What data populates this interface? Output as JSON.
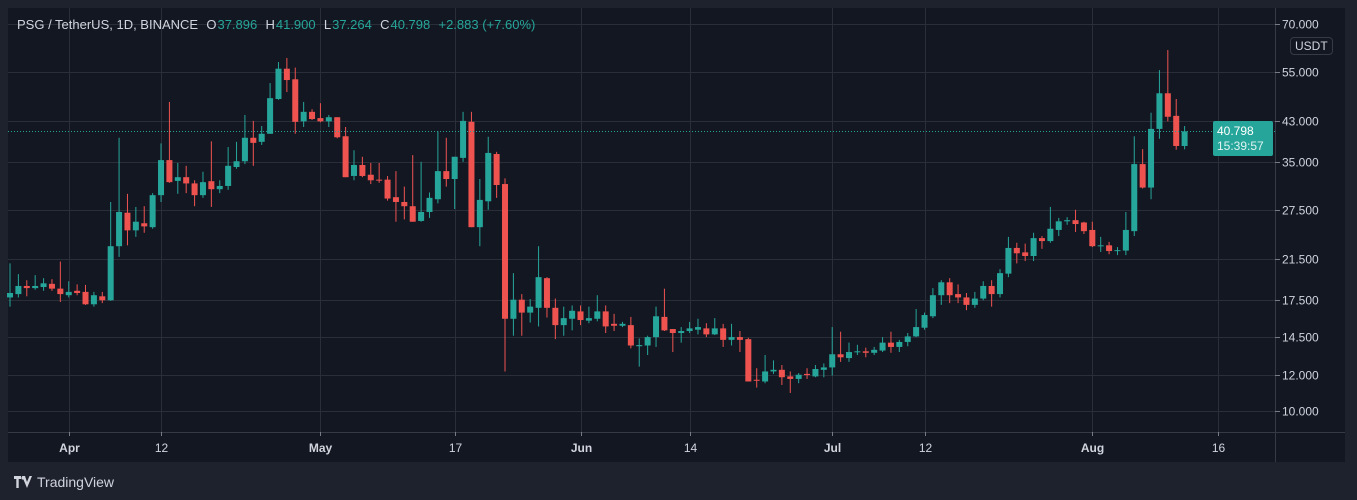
{
  "header": {
    "symbol": "PSG / TetherUS, 1D, BINANCE",
    "open_label": "O",
    "open": "37.896",
    "high_label": "H",
    "high": "41.900",
    "low_label": "L",
    "low": "37.264",
    "close_label": "C",
    "close": "40.798",
    "change": "+2.883 (+7.60%)"
  },
  "price_axis": {
    "unit": "USDT",
    "last_price": "40.798",
    "countdown": "15:39:57"
  },
  "footer": {
    "brand": "TradingView"
  },
  "colors": {
    "up": "#26a69a",
    "down": "#ef5350",
    "grid": "#2a2e39",
    "background": "#131722",
    "text": "#d1d4dc"
  },
  "chart_data": {
    "type": "candlestick",
    "interval": "1D",
    "y_scale": "log",
    "ylim": [
      9.3,
      72
    ],
    "grid": true,
    "y_ticks": [
      70,
      55,
      43,
      35,
      27.5,
      21.5,
      17.5,
      14.5,
      12,
      10
    ],
    "y_tick_labels": [
      "70.000",
      "55.000",
      "43.000",
      "35.000",
      "27.500",
      "21.500",
      "17.500",
      "14.500",
      "12.000",
      "10.000"
    ],
    "x_ticks": [
      {
        "date": "04-01",
        "label": "Apr"
      },
      {
        "date": "04-12",
        "label": "12"
      },
      {
        "date": "05-01",
        "label": "May"
      },
      {
        "date": "05-17",
        "label": "17"
      },
      {
        "date": "06-01",
        "label": "Jun"
      },
      {
        "date": "06-14",
        "label": "14"
      },
      {
        "date": "07-01",
        "label": "Jul"
      },
      {
        "date": "07-12",
        "label": "12"
      },
      {
        "date": "08-01",
        "label": "Aug"
      },
      {
        "date": "08-16",
        "label": "16"
      }
    ],
    "last_price": 40.798,
    "columns": [
      "date",
      "open",
      "high",
      "low",
      "close"
    ],
    "candles": [
      [
        "03-25",
        17.7,
        21.0,
        16.9,
        18.1
      ],
      [
        "03-26",
        18.0,
        19.9,
        17.7,
        18.75
      ],
      [
        "03-27",
        18.75,
        19.3,
        17.8,
        18.55
      ],
      [
        "03-28",
        18.55,
        19.8,
        18.4,
        18.75
      ],
      [
        "03-29",
        18.65,
        19.5,
        18.3,
        19.0
      ],
      [
        "03-30",
        18.95,
        19.4,
        18.3,
        18.5
      ],
      [
        "03-31",
        18.5,
        21.2,
        17.3,
        18.0
      ],
      [
        "04-01",
        17.9,
        19.2,
        17.7,
        18.2
      ],
      [
        "04-02",
        18.3,
        18.9,
        17.9,
        18.1
      ],
      [
        "04-03",
        18.2,
        18.85,
        17.05,
        17.1
      ],
      [
        "04-04",
        17.1,
        18.2,
        16.9,
        17.9
      ],
      [
        "04-05",
        17.8,
        18.2,
        17.2,
        17.45
      ],
      [
        "04-06",
        17.45,
        28.6,
        17.4,
        22.9
      ],
      [
        "04-07",
        22.9,
        39.5,
        21.7,
        27.2
      ],
      [
        "04-08",
        27.1,
        29.8,
        23.0,
        24.8
      ],
      [
        "04-09",
        24.8,
        27.9,
        24.0,
        25.9
      ],
      [
        "04-10",
        25.7,
        28.0,
        24.5,
        25.3
      ],
      [
        "04-11",
        25.2,
        29.9,
        25.0,
        29.6
      ],
      [
        "04-12",
        29.6,
        38.4,
        28.6,
        35.3
      ],
      [
        "04-13",
        35.3,
        47.3,
        31.5,
        31.6
      ],
      [
        "04-14",
        31.8,
        34.8,
        29.8,
        32.4
      ],
      [
        "04-15",
        32.4,
        34.3,
        29.9,
        31.4
      ],
      [
        "04-16",
        31.4,
        31.9,
        28.0,
        29.6
      ],
      [
        "04-17",
        29.6,
        33.3,
        29.2,
        31.6
      ],
      [
        "04-18",
        31.75,
        38.8,
        27.9,
        30.5
      ],
      [
        "04-19",
        30.5,
        31.9,
        29.9,
        31.0
      ],
      [
        "04-20",
        31.0,
        37.7,
        30.4,
        34.3
      ],
      [
        "04-21",
        34.1,
        38.7,
        33.8,
        35.1
      ],
      [
        "04-22",
        35.1,
        44.3,
        34.6,
        39.5
      ],
      [
        "04-23",
        39.5,
        43.0,
        34.3,
        38.5
      ],
      [
        "04-24",
        38.7,
        41.9,
        38.1,
        40.3
      ],
      [
        "04-25",
        40.3,
        52.0,
        40.3,
        48.2
      ],
      [
        "04-26",
        48.0,
        57.8,
        47.8,
        55.9
      ],
      [
        "04-27",
        55.9,
        59.0,
        49.7,
        52.8
      ],
      [
        "04-28",
        53.0,
        56.2,
        40.3,
        42.8
      ],
      [
        "04-29",
        42.9,
        47.3,
        41.7,
        45.0
      ],
      [
        "04-30",
        45.0,
        45.6,
        43.2,
        43.4
      ],
      [
        "05-01",
        43.6,
        47.0,
        42.7,
        42.9
      ],
      [
        "05-02",
        42.9,
        44.3,
        41.7,
        43.8
      ],
      [
        "05-03",
        43.8,
        43.8,
        39.4,
        39.6
      ],
      [
        "05-04",
        39.8,
        41.7,
        32.4,
        32.4
      ],
      [
        "05-05",
        32.6,
        37.1,
        31.9,
        34.45
      ],
      [
        "05-06",
        34.45,
        35.9,
        32.4,
        32.6
      ],
      [
        "05-07",
        32.8,
        34.8,
        31.3,
        31.9
      ],
      [
        "05-08",
        32.0,
        34.8,
        31.5,
        31.9
      ],
      [
        "05-09",
        32.0,
        32.6,
        28.8,
        29.1
      ],
      [
        "05-10",
        29.3,
        33.4,
        25.9,
        28.6
      ],
      [
        "05-11",
        28.6,
        30.9,
        26.2,
        28.0
      ],
      [
        "05-12",
        28.0,
        36.2,
        25.9,
        25.9
      ],
      [
        "05-13",
        26.0,
        35.0,
        25.9,
        27.2
      ],
      [
        "05-14",
        27.2,
        30.0,
        26.4,
        29.2
      ],
      [
        "05-15",
        29.0,
        40.8,
        28.4,
        33.4
      ],
      [
        "05-16",
        33.4,
        39.5,
        30.9,
        32.1
      ],
      [
        "05-17",
        32.1,
        35.9,
        27.6,
        35.9
      ],
      [
        "05-18",
        35.7,
        45.0,
        35.0,
        43.0
      ],
      [
        "05-19",
        42.8,
        45.0,
        25.2,
        25.2
      ],
      [
        "05-20",
        25.2,
        32.1,
        22.9,
        28.9
      ],
      [
        "05-21",
        28.7,
        39.7,
        27.5,
        36.6
      ],
      [
        "05-22",
        36.4,
        36.8,
        29.2,
        31.15
      ],
      [
        "05-23",
        31.3,
        32.2,
        12.2,
        15.9
      ],
      [
        "05-24",
        15.9,
        20.0,
        14.6,
        17.5
      ],
      [
        "05-25",
        17.5,
        18.0,
        14.6,
        16.4
      ],
      [
        "05-26",
        16.4,
        17.55,
        15.6,
        16.9
      ],
      [
        "05-27",
        16.8,
        22.9,
        15.3,
        19.6
      ],
      [
        "05-28",
        19.5,
        19.6,
        16.0,
        16.8
      ],
      [
        "05-29",
        16.8,
        17.6,
        14.35,
        15.4
      ],
      [
        "05-30",
        15.4,
        16.9,
        14.6,
        15.95
      ],
      [
        "05-31",
        15.9,
        17.0,
        15.0,
        16.55
      ],
      [
        "06-01",
        16.5,
        17.0,
        15.4,
        15.8
      ],
      [
        "06-02",
        15.75,
        16.9,
        15.55,
        15.95
      ],
      [
        "06-03",
        15.9,
        17.9,
        15.7,
        16.5
      ],
      [
        "06-04",
        16.5,
        17.0,
        14.8,
        15.3
      ],
      [
        "06-05",
        15.5,
        16.3,
        14.95,
        15.35
      ],
      [
        "06-06",
        15.35,
        15.65,
        15.25,
        15.5
      ],
      [
        "06-07",
        15.4,
        16.05,
        13.7,
        13.9
      ],
      [
        "06-08",
        13.85,
        14.4,
        12.5,
        13.93
      ],
      [
        "06-09",
        13.9,
        14.6,
        13.25,
        14.5
      ],
      [
        "06-10",
        14.5,
        16.9,
        13.8,
        16.1
      ],
      [
        "06-11",
        16.05,
        18.5,
        14.95,
        15.0
      ],
      [
        "06-12",
        15.1,
        15.1,
        13.45,
        14.8
      ],
      [
        "06-13",
        14.8,
        15.25,
        14.1,
        14.95
      ],
      [
        "06-14",
        14.95,
        15.65,
        14.8,
        15.15
      ],
      [
        "06-15",
        15.05,
        15.9,
        14.7,
        15.25
      ],
      [
        "06-16",
        15.15,
        15.55,
        14.5,
        14.7
      ],
      [
        "06-17",
        14.7,
        15.95,
        14.65,
        15.15
      ],
      [
        "06-18",
        15.15,
        15.5,
        13.8,
        14.3
      ],
      [
        "06-19",
        14.3,
        15.5,
        13.9,
        14.5
      ],
      [
        "06-20",
        14.5,
        14.95,
        13.45,
        14.3
      ],
      [
        "06-21",
        14.35,
        14.45,
        11.6,
        11.6
      ],
      [
        "06-22",
        11.7,
        12.4,
        11.25,
        11.65
      ],
      [
        "06-23",
        11.6,
        13.25,
        11.5,
        12.2
      ],
      [
        "06-24",
        12.2,
        12.9,
        12.05,
        12.3
      ],
      [
        "06-25",
        12.3,
        12.6,
        11.4,
        11.85
      ],
      [
        "06-26",
        11.9,
        12.2,
        10.95,
        11.75
      ],
      [
        "06-27",
        11.75,
        12.1,
        11.5,
        12.0
      ],
      [
        "06-28",
        12.05,
        12.4,
        11.75,
        11.98
      ],
      [
        "06-29",
        11.9,
        12.6,
        11.85,
        12.35
      ],
      [
        "06-30",
        12.3,
        12.7,
        11.85,
        12.45
      ],
      [
        "07-01",
        12.45,
        15.25,
        11.95,
        13.3
      ],
      [
        "07-02",
        13.3,
        14.9,
        12.8,
        13.1
      ],
      [
        "07-03",
        13.05,
        14.1,
        12.8,
        13.45
      ],
      [
        "07-04",
        13.45,
        13.95,
        13.25,
        13.5
      ],
      [
        "07-05",
        13.5,
        13.75,
        13.1,
        13.4
      ],
      [
        "07-06",
        13.4,
        13.8,
        13.25,
        13.6
      ],
      [
        "07-07",
        13.55,
        14.5,
        13.45,
        14.1
      ],
      [
        "07-08",
        14.1,
        14.9,
        13.4,
        13.8
      ],
      [
        "07-09",
        13.8,
        14.3,
        13.45,
        14.15
      ],
      [
        "07-10",
        14.15,
        14.8,
        13.85,
        14.55
      ],
      [
        "07-11",
        14.55,
        16.7,
        14.5,
        15.25
      ],
      [
        "07-12",
        15.2,
        16.4,
        15.05,
        16.2
      ],
      [
        "07-13",
        16.1,
        18.55,
        15.95,
        17.9
      ],
      [
        "07-14",
        17.9,
        19.3,
        17.05,
        19.1
      ],
      [
        "07-15",
        19.1,
        19.5,
        17.2,
        17.9
      ],
      [
        "07-16",
        18.0,
        18.9,
        17.2,
        17.7
      ],
      [
        "07-17",
        17.7,
        18.1,
        16.6,
        17.05
      ],
      [
        "07-18",
        17.05,
        18.2,
        16.8,
        17.6
      ],
      [
        "07-19",
        17.6,
        19.2,
        17.45,
        18.75
      ],
      [
        "07-20",
        18.75,
        19.3,
        16.9,
        18.0
      ],
      [
        "07-21",
        18.0,
        20.4,
        17.7,
        20.0
      ],
      [
        "07-22",
        19.95,
        24.0,
        19.6,
        22.7
      ],
      [
        "07-23",
        22.7,
        23.3,
        21.0,
        22.1
      ],
      [
        "07-24",
        22.2,
        23.2,
        21.25,
        21.8
      ],
      [
        "07-25",
        21.8,
        24.5,
        21.25,
        23.85
      ],
      [
        "07-26",
        23.85,
        24.1,
        22.6,
        23.5
      ],
      [
        "07-27",
        23.5,
        27.9,
        23.3,
        25.0
      ],
      [
        "07-28",
        24.85,
        26.4,
        24.1,
        25.95
      ],
      [
        "07-29",
        25.95,
        26.5,
        25.5,
        26.1
      ],
      [
        "07-30",
        26.1,
        27.5,
        24.6,
        25.6
      ],
      [
        "07-31",
        25.8,
        25.9,
        24.35,
        24.7
      ],
      [
        "08-01",
        24.85,
        25.9,
        22.8,
        22.9
      ],
      [
        "08-02",
        22.9,
        24.0,
        22.25,
        23.0
      ],
      [
        "08-03",
        23.0,
        23.4,
        22.0,
        22.35
      ],
      [
        "08-04",
        22.35,
        22.8,
        21.9,
        22.45
      ],
      [
        "08-05",
        22.4,
        27.2,
        21.9,
        24.85
      ],
      [
        "08-06",
        24.7,
        39.8,
        24.1,
        34.6
      ],
      [
        "08-07",
        34.6,
        37.3,
        30.6,
        30.75
      ],
      [
        "08-08",
        30.75,
        44.8,
        29.0,
        41.3
      ],
      [
        "08-09",
        41.3,
        55.5,
        39.3,
        49.4
      ],
      [
        "08-10",
        49.4,
        61.4,
        42.9,
        43.9
      ],
      [
        "08-11",
        44.1,
        48.0,
        37.2,
        37.9
      ],
      [
        "08-12",
        37.896,
        41.9,
        37.264,
        40.798
      ]
    ]
  }
}
